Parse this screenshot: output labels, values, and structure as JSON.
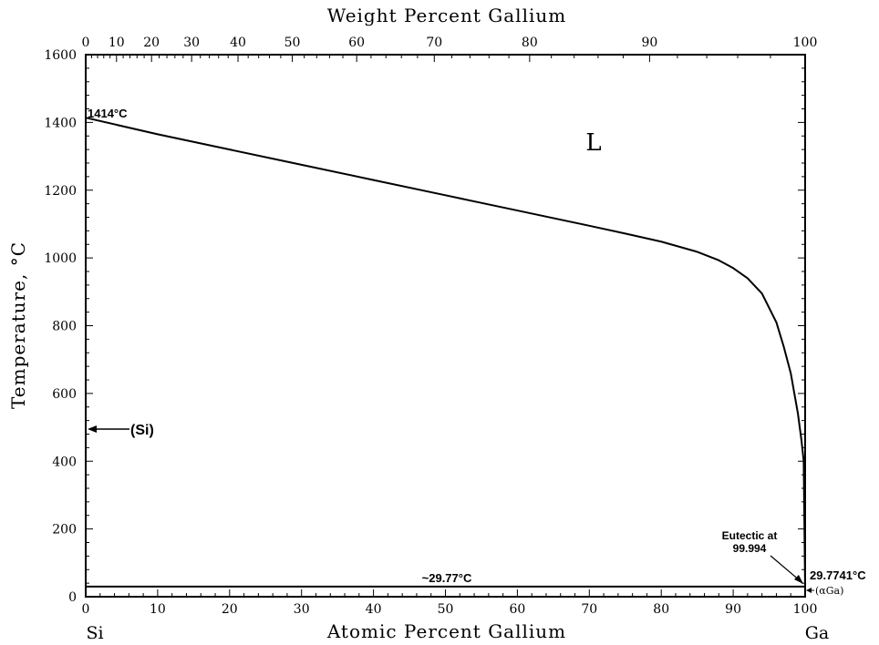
{
  "chart_data": {
    "type": "line",
    "title": "",
    "xlabel": "Atomic Percent Gallium",
    "x2label": "Weight Percent Gallium",
    "ylabel": "Temperature, °C",
    "xlim": [
      0,
      100
    ],
    "ylim": [
      0,
      1600
    ],
    "x_ticks": [
      "0",
      "10",
      "20",
      "30",
      "40",
      "50",
      "60",
      "70",
      "80",
      "90",
      "100"
    ],
    "x2_ticks": [
      "0",
      "10",
      "20",
      "30",
      "40",
      "50",
      "60",
      "70",
      "80",
      "90",
      "100"
    ],
    "y_ticks": [
      "0",
      "200",
      "400",
      "600",
      "800",
      "1000",
      "1200",
      "1400",
      "1600"
    ],
    "endpoint_labels": {
      "left": "Si",
      "right": "Ga"
    },
    "series": [
      {
        "x": [
          0,
          10,
          20,
          30,
          40,
          50,
          60,
          70,
          75,
          80,
          85,
          88,
          90,
          92,
          94,
          96,
          97,
          98,
          99,
          99.5,
          99.8,
          99.994,
          100
        ],
        "y": [
          1414,
          1365,
          1320,
          1275,
          1230,
          1185,
          1140,
          1095,
          1072,
          1048,
          1018,
          993,
          970,
          940,
          895,
          810,
          740,
          660,
          540,
          460,
          400,
          29.77,
          29.7741
        ]
      },
      {
        "x": [
          0,
          100
        ],
        "y": [
          29.77,
          29.77
        ]
      }
    ],
    "annotations": {
      "si_melting": "1414°C",
      "liquid": "L",
      "si_phase": "(Si)",
      "eutectic_line": "~29.77°C",
      "eutectic_line1": "Eutectic at",
      "eutectic_line2": "99.994",
      "ga_melting": "29.7741°C",
      "ga_phase": "(αGa)"
    }
  }
}
